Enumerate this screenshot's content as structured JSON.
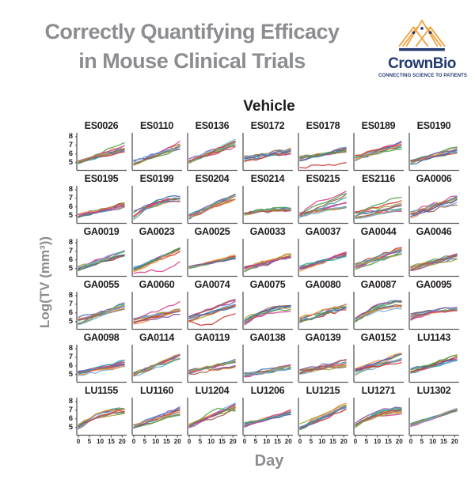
{
  "header": {
    "title_line1": "Correctly Quantifying Efficacy",
    "title_line2": "in Mouse Clinical Trials",
    "title_color": "#8b8d90"
  },
  "logo": {
    "brand": "CrownBio",
    "tagline": "CONNECTING SCIENCE TO PATIENTS",
    "orange": "#F0A13C",
    "navy": "#223A70"
  },
  "chart_data": {
    "type": "line",
    "title": "Vehicle",
    "xlabel": "Day",
    "ylabel": "Log(TV (mm³))",
    "x_ticks": [
      0,
      5,
      10,
      15,
      20
    ],
    "y_ticks": [
      8,
      7,
      6,
      5
    ],
    "x_range": [
      0,
      21
    ],
    "y_range": [
      4.2,
      8.45
    ],
    "grid": false,
    "legend": "none",
    "curves_per_panel": 9,
    "axis_color": "#58595b",
    "palette": [
      "#cf3a34",
      "#3f6cb4",
      "#4fa14a",
      "#ef8c36",
      "#7e57a8",
      "#d64090",
      "#36a49e",
      "#a4a43a",
      "#96604b",
      "#6faede"
    ],
    "panels": [
      {
        "label": "ES0026",
        "band": [
          4.8,
          5.3,
          6.2,
          7.3
        ]
      },
      {
        "label": "ES0110",
        "band": [
          4.6,
          5.4,
          6.4,
          7.5
        ]
      },
      {
        "label": "ES0136",
        "band": [
          4.9,
          5.6,
          6.8,
          7.7
        ]
      },
      {
        "label": "ES0172",
        "band": [
          5.0,
          5.9,
          6.0,
          6.7
        ],
        "wiggle": 0.2
      },
      {
        "label": "ES0178",
        "band": [
          5.1,
          5.9,
          6.2,
          6.9
        ],
        "outlier": {
          "points": [
            4.45,
            4.6,
            4.7,
            5.0
          ],
          "color": 0
        }
      },
      {
        "label": "ES0189",
        "band": [
          5.1,
          5.9,
          6.5,
          7.5
        ]
      },
      {
        "label": "ES0190",
        "band": [
          4.8,
          5.3,
          6.1,
          6.9
        ]
      },
      {
        "label": "ES0195",
        "band": [
          4.5,
          5.2,
          5.8,
          6.5
        ]
      },
      {
        "label": "ES0199",
        "band": [
          4.5,
          5.6,
          6.6,
          7.3
        ],
        "shape": "plateau"
      },
      {
        "label": "ES0204",
        "band": [
          4.6,
          5.3,
          6.8,
          7.8
        ]
      },
      {
        "label": "ES0214",
        "band": [
          5.0,
          5.4,
          5.4,
          5.9
        ],
        "shape": "plateau"
      },
      {
        "label": "ES0215",
        "band": [
          4.7,
          5.4,
          5.9,
          7.6
        ],
        "outlier": {
          "points": [
            5.0,
            6.6,
            7.1,
            7.8
          ],
          "color": 5
        }
      },
      {
        "label": "ES2116",
        "band": [
          4.4,
          5.5,
          5.4,
          7.0
        ],
        "outlier": {
          "points": [
            4.9,
            6.0,
            6.7,
            7.1
          ],
          "color": 2
        }
      },
      {
        "label": "GA0006",
        "band": [
          4.4,
          5.5,
          6.2,
          7.3
        ],
        "wiggle": 0.2
      },
      {
        "label": "GA0019",
        "band": [
          4.7,
          5.4,
          6.4,
          7.3
        ]
      },
      {
        "label": "GA0023",
        "band": [
          4.6,
          5.3,
          6.9,
          7.4
        ],
        "outlier": {
          "points": [
            4.45,
            4.8,
            4.6,
            5.8
          ],
          "color": 5
        }
      },
      {
        "label": "GA0025",
        "band": [
          5.0,
          5.3,
          6.1,
          6.6
        ],
        "wiggle": 0.07
      },
      {
        "label": "GA0033",
        "band": [
          4.6,
          5.3,
          6.2,
          6.8
        ],
        "wiggle": 0.2
      },
      {
        "label": "GA0037",
        "band": [
          4.7,
          5.5,
          6.4,
          7.3
        ]
      },
      {
        "label": "GA0044",
        "band": [
          4.9,
          5.6,
          6.6,
          7.5
        ]
      },
      {
        "label": "GA0046",
        "band": [
          4.7,
          5.4,
          6.0,
          6.9
        ]
      },
      {
        "label": "GA0055",
        "band": [
          4.6,
          5.5,
          6.4,
          7.2
        ]
      },
      {
        "label": "GA0060",
        "band": [
          4.7,
          5.4,
          5.8,
          6.6
        ],
        "outlier": {
          "points": [
            5.2,
            5.9,
            6.6,
            7.3
          ],
          "color": 5
        }
      },
      {
        "label": "GA0074",
        "band": [
          4.8,
          5.8,
          6.5,
          7.6
        ],
        "outlier": {
          "points": [
            5.1,
            4.45,
            5.2,
            5.9
          ],
          "color": 0
        }
      },
      {
        "label": "GA0075",
        "band": [
          4.6,
          5.4,
          6.1,
          7.0
        ],
        "shape": "plateau"
      },
      {
        "label": "GA0080",
        "band": [
          4.8,
          5.5,
          6.3,
          7.3
        ],
        "wiggle": 0.22
      },
      {
        "label": "GA0087",
        "band": [
          4.9,
          5.6,
          6.4,
          7.4
        ],
        "shape": "plateau"
      },
      {
        "label": "GA0095",
        "band": [
          5.0,
          5.9,
          6.2,
          6.8
        ],
        "shape": "plateau"
      },
      {
        "label": "GA0098",
        "band": [
          4.8,
          5.4,
          5.9,
          6.7
        ]
      },
      {
        "label": "GA0114",
        "band": [
          4.8,
          5.3,
          6.6,
          7.4
        ]
      },
      {
        "label": "GA0119",
        "band": [
          5.0,
          5.5,
          5.8,
          6.9
        ]
      },
      {
        "label": "GA0138",
        "band": [
          4.5,
          5.2,
          5.5,
          6.2
        ],
        "wiggle": 0.2
      },
      {
        "label": "GA0139",
        "band": [
          5.0,
          5.6,
          5.8,
          6.9
        ]
      },
      {
        "label": "GA0152",
        "band": [
          4.9,
          5.9,
          6.3,
          7.5
        ]
      },
      {
        "label": "LU1143",
        "band": [
          5.0,
          5.7,
          6.4,
          7.3
        ]
      },
      {
        "label": "LU1155",
        "band": [
          4.8,
          5.5,
          6.4,
          7.2
        ],
        "shape": "plateau"
      },
      {
        "label": "LU1160",
        "band": [
          4.9,
          5.4,
          6.4,
          7.4
        ]
      },
      {
        "label": "LU1204",
        "band": [
          5.0,
          5.4,
          7.0,
          8.1
        ],
        "outlier": {
          "points": [
            5.2,
            6.3,
            7.3,
            6.9
          ],
          "color": 2
        }
      },
      {
        "label": "LU1206",
        "band": [
          5.0,
          5.6,
          6.5,
          7.1
        ],
        "wiggle": 0.1
      },
      {
        "label": "LU1215",
        "band": [
          4.7,
          5.5,
          7.0,
          7.9
        ]
      },
      {
        "label": "LU1271",
        "band": [
          5.0,
          5.9,
          6.5,
          7.3
        ],
        "shape": "plateau"
      },
      {
        "label": "LU1302",
        "band": [
          5.1,
          5.5,
          6.8,
          7.2
        ],
        "wiggle": 0.08
      }
    ]
  }
}
